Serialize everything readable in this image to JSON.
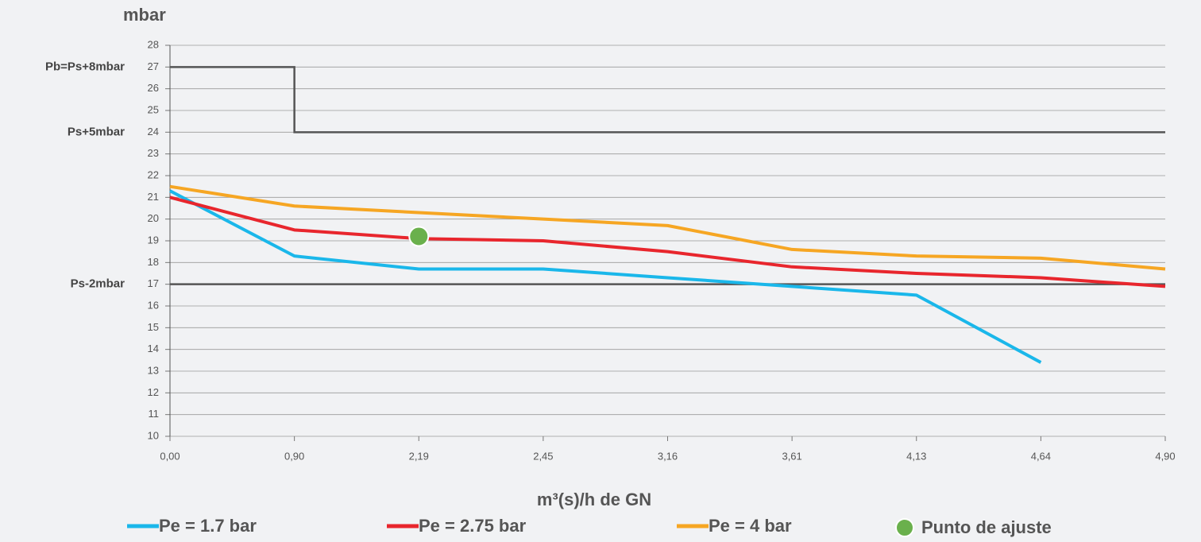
{
  "chart_data": {
    "type": "line",
    "y_axis_title": "mbar",
    "x_axis_title": "m³(s)/h de GN",
    "categories": [
      "0,00",
      "0,90",
      "2,19",
      "2,45",
      "3,16",
      "3,61",
      "4,13",
      "4,64",
      "4,90"
    ],
    "ylim": [
      10,
      28
    ],
    "yticks": [
      10,
      11,
      12,
      13,
      14,
      15,
      16,
      17,
      18,
      19,
      20,
      21,
      22,
      23,
      24,
      25,
      26,
      27,
      28
    ],
    "grid": true,
    "series": [
      {
        "name": "Pe = 1.7 bar",
        "color": "#1ab7ea",
        "values": [
          21.3,
          18.3,
          17.7,
          17.7,
          17.3,
          16.9,
          16.5,
          13.4,
          null
        ]
      },
      {
        "name": "Pe = 2.75 bar",
        "color": "#e8262d",
        "values": [
          21.0,
          19.5,
          19.1,
          19.0,
          18.5,
          17.8,
          17.5,
          17.3,
          16.9
        ]
      },
      {
        "name": "Pe = 4 bar",
        "color": "#f6a623",
        "values": [
          21.5,
          20.6,
          20.3,
          20.0,
          19.7,
          18.6,
          18.3,
          18.2,
          17.7
        ]
      }
    ],
    "limit_step": {
      "color": "#555555",
      "values": [
        27,
        24,
        24,
        24,
        24,
        24,
        24,
        24,
        24
      ]
    },
    "reference_line": {
      "color": "#555555",
      "value": 17
    },
    "side_labels": [
      {
        "value": 27,
        "label": "Pb=Ps+8mbar"
      },
      {
        "value": 24,
        "label": "Ps+5mbar"
      },
      {
        "value": 17,
        "label": "Ps-2mbar"
      }
    ],
    "point": {
      "name": "Punto de ajuste",
      "color": "#6ab04c",
      "category_index": 2,
      "value": 19.2
    }
  }
}
